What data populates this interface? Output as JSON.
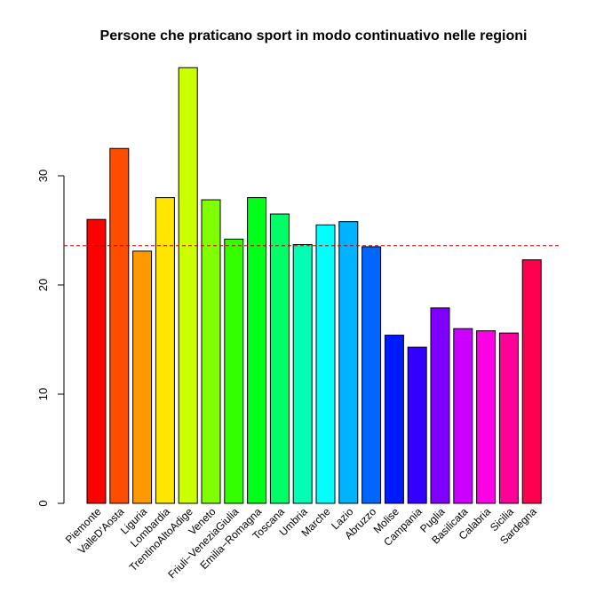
{
  "chart_data": {
    "type": "bar",
    "title": "Persone che praticano sport in modo continuativo nelle regioni",
    "xlabel": "",
    "ylabel": "",
    "ylim": [
      0,
      40
    ],
    "yticks": [
      0,
      10,
      20,
      30
    ],
    "categories": [
      "Piemonte",
      "ValleD'Aosta",
      "Liguria",
      "Lombardia",
      "TrentinoAltoAdige",
      "Veneto",
      "Friuli−VeneziaGiulia",
      "Emilia−Romagna",
      "Toscana",
      "Umbria",
      "Marche",
      "Lazio",
      "Abruzzo",
      "Molise",
      "Campania",
      "Puglia",
      "Basilicata",
      "Calabria",
      "Sicilia",
      "Sardegna"
    ],
    "values": [
      26.0,
      32.5,
      23.1,
      28.0,
      39.9,
      27.8,
      24.2,
      28.0,
      26.5,
      23.7,
      25.5,
      25.8,
      23.5,
      15.4,
      14.3,
      17.9,
      16.0,
      15.8,
      15.6,
      22.3
    ],
    "colors": [
      "#FF0000",
      "#FF4D00",
      "#FF9900",
      "#FFE500",
      "#CCFF00",
      "#80FF00",
      "#33FF00",
      "#00FF19",
      "#00FF66",
      "#00FFB2",
      "#00FFFF",
      "#00B3FF",
      "#0066FF",
      "#001AFF",
      "#3300FF",
      "#7F00FF",
      "#CC00FF",
      "#FF00E6",
      "#FF0099",
      "#FF004D"
    ],
    "reference_line": {
      "value": 23.6,
      "color": "#CC0000",
      "style": "dashed"
    },
    "grid": false,
    "legend": "none"
  }
}
